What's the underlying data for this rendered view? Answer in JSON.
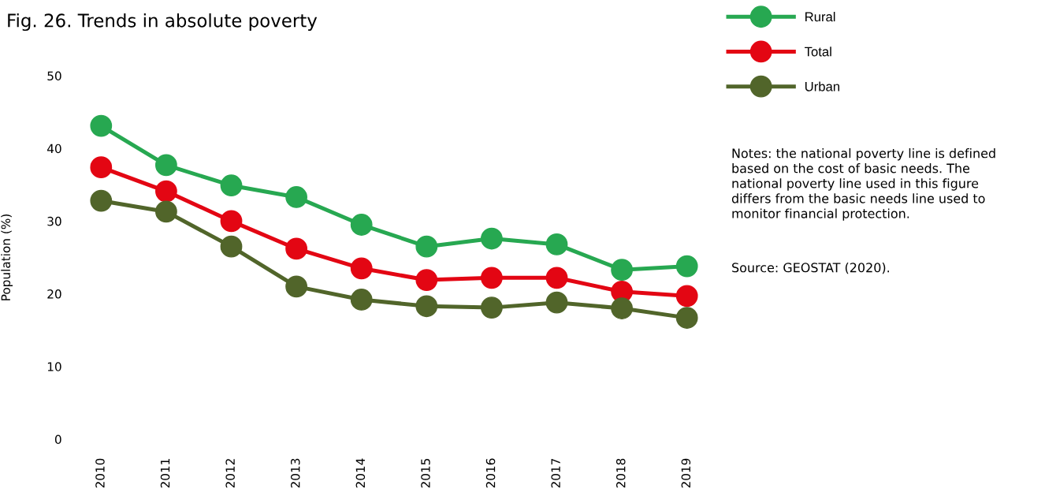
{
  "chart_data": {
    "type": "line",
    "title": "Fig. 26. Trends in absolute poverty",
    "ylabel": "Population (%)",
    "categories": [
      "2010",
      "2011",
      "2012",
      "2013",
      "2014",
      "2015",
      "2016",
      "2017",
      "2018",
      "2019"
    ],
    "series": [
      {
        "name": "Rural",
        "color": "#27a851",
        "values": [
          43.1,
          37.7,
          34.9,
          33.3,
          29.5,
          26.5,
          27.6,
          26.8,
          23.3,
          23.8
        ]
      },
      {
        "name": "Total",
        "color": "#e30613",
        "values": [
          37.4,
          34.1,
          30.0,
          26.2,
          23.5,
          21.9,
          22.2,
          22.2,
          20.3,
          19.7
        ]
      },
      {
        "name": "Urban",
        "color": "#51652a",
        "values": [
          32.8,
          31.3,
          26.5,
          21.0,
          19.2,
          18.3,
          18.1,
          18.8,
          18.0,
          16.7
        ]
      }
    ],
    "ylim": [
      0,
      50
    ],
    "yticks": [
      0,
      10,
      20,
      30,
      40,
      50
    ],
    "marker": "circle",
    "line_style": "solid",
    "grid": false,
    "legend": "top right",
    "annotations": [
      "Notes: the national poverty line is defined\nbased on the cost of basic needs. The\nnational poverty line used in this figure\ndiffers from the basic needs line used to\nmonitor financial protection.",
      "Source: GEOSTAT (2020)."
    ]
  }
}
